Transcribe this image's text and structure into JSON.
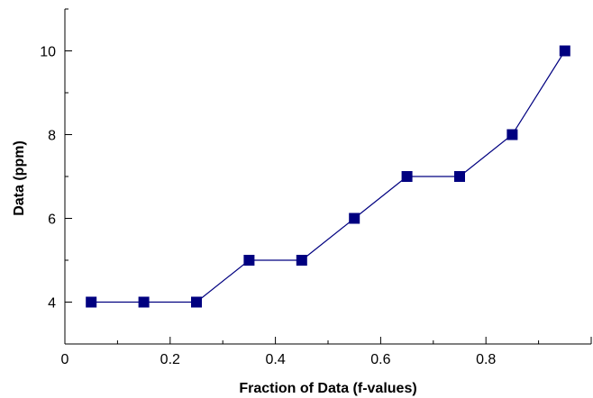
{
  "chart_data": {
    "type": "line",
    "title": "",
    "xlabel": "Fraction of Data (f-values)",
    "ylabel": "Data (ppm)",
    "xlim": [
      0,
      1.0
    ],
    "ylim": [
      3,
      11
    ],
    "x_ticks": [
      0,
      0.2,
      0.4,
      0.6,
      0.8,
      1.0
    ],
    "x_tick_labels": [
      "0",
      "0.2",
      "0.4",
      "0.6",
      "0.8",
      ""
    ],
    "y_ticks": [
      4,
      6,
      8,
      10
    ],
    "y_tick_labels": [
      "4",
      "6",
      "8",
      "10"
    ],
    "grid": false,
    "marker": "square",
    "color": "#000080",
    "series": [
      {
        "x": [
          0.05,
          0.15,
          0.25,
          0.35,
          0.45,
          0.55,
          0.65,
          0.75,
          0.85,
          0.95
        ],
        "values": [
          4,
          4,
          4,
          5,
          5,
          6,
          7,
          7,
          8,
          10
        ]
      }
    ]
  }
}
